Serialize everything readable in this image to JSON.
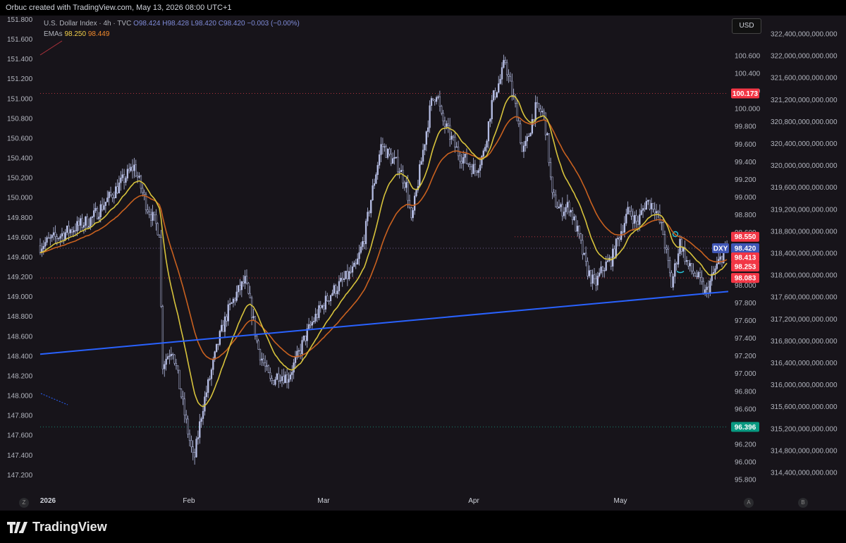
{
  "header": {
    "text": "Orbuc created with TradingView.com, May 13, 2026 08:00 UTC+1"
  },
  "legend": {
    "title": "U.S. Dollar Index · 4h · TVC",
    "o": "O98.424",
    "h": "H98.428",
    "l": "L98.420",
    "c": "C98.420",
    "chg": "−0.003 (−0.00%)",
    "emas_label": "EMAs",
    "ema1": "98.250",
    "ema2": "98.449"
  },
  "currency_button": "USD",
  "corner_buttons": {
    "z": "Z",
    "a": "A",
    "b": "B"
  },
  "footer": {
    "logo_text": "TradingView"
  },
  "colors": {
    "candles": "#b7bfe6",
    "ema_fast": "#d7c33c",
    "ema_slow": "#c9611f",
    "trendline": "#2962ff",
    "bg": "#17141a"
  },
  "chart_data": {
    "type": "line",
    "title": "U.S. Dollar Index · 4h · TVC",
    "x_tick_labels": [
      "2026",
      "Feb",
      "Mar",
      "Apr",
      "May"
    ],
    "left_axis": {
      "ticks": [
        "151.800",
        "151.600",
        "151.400",
        "151.200",
        "151.000",
        "150.800",
        "150.600",
        "150.400",
        "150.200",
        "150.000",
        "149.800",
        "149.600",
        "149.400",
        "149.200",
        "149.000",
        "148.800",
        "148.600",
        "148.400",
        "148.200",
        "148.000",
        "147.800",
        "147.600",
        "147.400",
        "147.200"
      ]
    },
    "right_axis": {
      "ticks": [
        "100.600",
        "100.400",
        "100.200",
        "100.000",
        "99.800",
        "99.600",
        "99.400",
        "99.200",
        "99.000",
        "98.800",
        "98.600",
        "98.400",
        "98.200",
        "98.000",
        "97.800",
        "97.600",
        "97.400",
        "97.200",
        "97.000",
        "96.800",
        "96.600",
        "96.400",
        "96.200",
        "96.000",
        "95.800"
      ],
      "ylim": [
        95.64,
        100.96
      ]
    },
    "far_right_axis": {
      "ticks": [
        "322,400,000,000.000",
        "322,000,000,000.000",
        "321,600,000,000.000",
        "321,200,000,000.000",
        "320,800,000,000.000",
        "320,400,000,000.000",
        "320,000,000,000.000",
        "319,600,000,000.000",
        "319,200,000,000.000",
        "318,800,000,000.000",
        "318,400,000,000.000",
        "318,000,000,000.000",
        "317,600,000,000.000",
        "317,200,000,000.000",
        "316,800,000,000.000",
        "316,400,000,000.000",
        "316,000,000,000.000",
        "315,600,000,000.000",
        "315,200,000,000.000",
        "314,800,000,000.000",
        "314,400,000,000.000"
      ]
    },
    "series": [
      {
        "name": "DXY",
        "price_path": [
          [
            0,
            98.45
          ],
          [
            3,
            98.6
          ],
          [
            6,
            98.75
          ],
          [
            9,
            99.1
          ],
          [
            11,
            99.35
          ],
          [
            12.5,
            98.9
          ],
          [
            14,
            98.6
          ],
          [
            14.3,
            97.1
          ],
          [
            15.5,
            97.3
          ],
          [
            17,
            96.5
          ],
          [
            18,
            96.0
          ],
          [
            19,
            96.6
          ],
          [
            20,
            97.0
          ],
          [
            21,
            97.4
          ],
          [
            22,
            97.7
          ],
          [
            23,
            97.9
          ],
          [
            24,
            98.05
          ],
          [
            24.8,
            97.7
          ],
          [
            25.5,
            97.3
          ],
          [
            27,
            96.9
          ],
          [
            28,
            97.0
          ],
          [
            29,
            96.95
          ],
          [
            30,
            97.15
          ],
          [
            31,
            97.4
          ],
          [
            32,
            97.6
          ],
          [
            33,
            97.75
          ],
          [
            34,
            97.9
          ],
          [
            35,
            98.0
          ],
          [
            37,
            98.2
          ],
          [
            38,
            98.55
          ],
          [
            39,
            99.1
          ],
          [
            40,
            99.6
          ],
          [
            41,
            99.45
          ],
          [
            42,
            99.35
          ],
          [
            43,
            99.1
          ],
          [
            43.5,
            98.7
          ],
          [
            44,
            99.0
          ],
          [
            45,
            99.6
          ],
          [
            45.8,
            100.05
          ],
          [
            46.5,
            100.2
          ],
          [
            47,
            99.9
          ],
          [
            48,
            99.7
          ],
          [
            49,
            99.5
          ],
          [
            50,
            99.4
          ],
          [
            51,
            99.3
          ],
          [
            52,
            99.5
          ],
          [
            53,
            100.1
          ],
          [
            54,
            100.35
          ],
          [
            54.5,
            100.55
          ],
          [
            55,
            100.3
          ],
          [
            56,
            99.9
          ],
          [
            56.5,
            99.5
          ],
          [
            57,
            99.6
          ],
          [
            58,
            100.0
          ],
          [
            59,
            99.95
          ],
          [
            59.5,
            99.6
          ],
          [
            60,
            99.0
          ],
          [
            61,
            98.85
          ],
          [
            62,
            98.9
          ],
          [
            63,
            98.6
          ],
          [
            64,
            98.2
          ],
          [
            65,
            98.0
          ],
          [
            66,
            98.2
          ],
          [
            67,
            98.3
          ],
          [
            68,
            98.6
          ],
          [
            69,
            98.85
          ],
          [
            70,
            98.7
          ],
          [
            71,
            98.95
          ],
          [
            72,
            98.9
          ],
          [
            73,
            98.6
          ],
          [
            74,
            98.0
          ],
          [
            75,
            98.5
          ],
          [
            76,
            98.2
          ],
          [
            77,
            98.1
          ],
          [
            78,
            97.9
          ],
          [
            79,
            98.15
          ],
          [
            80,
            98.35
          ],
          [
            80.5,
            98.42
          ]
        ]
      },
      {
        "name": "EMA fast",
        "value": "98.250"
      },
      {
        "name": "EMA slow",
        "value": "98.449"
      }
    ],
    "price_labels": [
      {
        "text": "100.173",
        "value": 100.173,
        "color": "#f23645"
      },
      {
        "text": "98.550",
        "value": 98.55,
        "color": "#f23645"
      },
      {
        "text": "DXY",
        "value": 98.42,
        "color": "#3f56b5"
      },
      {
        "text": "98.420",
        "value": 98.42,
        "color": "#3f56b5"
      },
      {
        "text": "98.413",
        "value": 98.413,
        "color": "#f23645"
      },
      {
        "text": "98.253",
        "value": 98.253,
        "color": "#f23645"
      },
      {
        "text": "98.083",
        "value": 98.083,
        "color": "#f23645"
      },
      {
        "text": "96.396",
        "value": 96.396,
        "color": "#089981"
      }
    ],
    "trendline": {
      "from": [
        0,
        97.22
      ],
      "to": [
        100,
        97.93
      ]
    },
    "horizontal_levels": [
      100.173,
      98.55,
      98.42,
      98.083,
      96.396
    ]
  }
}
